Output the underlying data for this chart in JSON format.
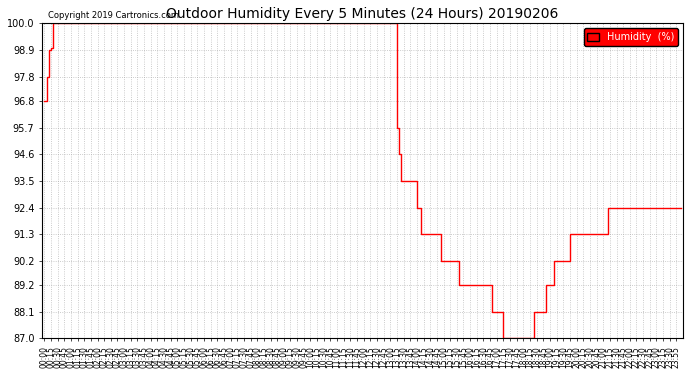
{
  "title": "Outdoor Humidity Every 5 Minutes (24 Hours) 20190206",
  "copyright": "Copyright 2019 Cartronics.com",
  "legend_label": "Humidity  (%)",
  "line_color": "#ff0000",
  "background_color": "#ffffff",
  "plot_bg_color": "#ffffff",
  "ylim": [
    87.0,
    100.0
  ],
  "yticks": [
    87.0,
    88.1,
    89.2,
    90.2,
    91.3,
    92.4,
    93.5,
    94.6,
    95.7,
    96.8,
    97.8,
    98.9,
    100.0
  ],
  "grid_color": "#aaaaaa",
  "humidity_values": [
    96.8,
    97.8,
    98.9,
    99.0,
    100.0,
    100.0,
    100.0,
    100.0,
    100.0,
    100.0,
    100.0,
    100.0,
    100.0,
    100.0,
    100.0,
    100.0,
    100.0,
    100.0,
    100.0,
    100.0,
    100.0,
    100.0,
    100.0,
    100.0,
    100.0,
    100.0,
    100.0,
    100.0,
    100.0,
    100.0,
    100.0,
    100.0,
    100.0,
    100.0,
    100.0,
    100.0,
    100.0,
    100.0,
    100.0,
    100.0,
    100.0,
    100.0,
    100.0,
    100.0,
    100.0,
    100.0,
    100.0,
    100.0,
    100.0,
    100.0,
    100.0,
    100.0,
    100.0,
    100.0,
    100.0,
    100.0,
    100.0,
    100.0,
    100.0,
    100.0,
    100.0,
    100.0,
    100.0,
    100.0,
    100.0,
    100.0,
    100.0,
    100.0,
    100.0,
    100.0,
    100.0,
    100.0,
    100.0,
    100.0,
    100.0,
    100.0,
    100.0,
    100.0,
    100.0,
    100.0,
    100.0,
    100.0,
    100.0,
    100.0,
    100.0,
    100.0,
    100.0,
    100.0,
    100.0,
    100.0,
    100.0,
    100.0,
    100.0,
    100.0,
    100.0,
    100.0,
    100.0,
    100.0,
    100.0,
    100.0,
    100.0,
    100.0,
    100.0,
    100.0,
    100.0,
    100.0,
    100.0,
    100.0,
    100.0,
    100.0,
    100.0,
    100.0,
    100.0,
    100.0,
    100.0,
    100.0,
    100.0,
    100.0,
    100.0,
    100.0,
    100.0,
    100.0,
    100.0,
    100.0,
    100.0,
    100.0,
    100.0,
    100.0,
    100.0,
    100.0,
    100.0,
    100.0,
    100.0,
    100.0,
    100.0,
    100.0,
    100.0,
    100.0,
    100.0,
    100.0,
    100.0,
    100.0,
    100.0,
    100.0,
    100.0,
    100.0,
    100.0,
    100.0,
    100.0,
    100.0,
    100.0,
    100.0,
    100.0,
    100.0,
    100.0,
    100.0,
    100.0,
    100.0,
    100.0,
    95.7,
    94.6,
    93.5,
    93.5,
    93.5,
    93.5,
    93.5,
    93.5,
    93.5,
    92.4,
    92.4,
    91.3,
    91.3,
    91.3,
    91.3,
    91.3,
    91.3,
    91.3,
    91.3,
    91.3,
    90.2,
    90.2,
    90.2,
    90.2,
    90.2,
    90.2,
    90.2,
    90.2,
    89.2,
    89.2,
    89.2,
    89.2,
    89.2,
    89.2,
    89.2,
    89.2,
    89.2,
    89.2,
    89.2,
    89.2,
    89.2,
    89.2,
    89.2,
    88.1,
    88.1,
    88.1,
    88.1,
    88.1,
    87.0,
    87.0,
    87.0,
    87.0,
    87.0,
    87.0,
    87.0,
    87.0,
    87.0,
    87.0,
    87.0,
    87.0,
    87.0,
    87.0,
    88.1,
    88.1,
    88.1,
    88.1,
    88.1,
    89.2,
    89.2,
    89.2,
    89.2,
    90.2,
    90.2,
    90.2,
    90.2,
    90.2,
    90.2,
    90.2,
    91.3,
    91.3,
    91.3,
    91.3,
    91.3,
    91.3,
    91.3,
    91.3,
    91.3,
    91.3,
    91.3,
    91.3,
    91.3,
    91.3,
    91.3,
    91.3,
    91.3,
    92.4,
    92.4,
    92.4,
    92.4,
    92.4,
    92.4,
    92.4,
    92.4,
    92.4,
    92.4,
    92.4,
    92.4,
    92.4,
    92.4,
    92.4,
    92.4,
    92.4,
    92.4,
    92.4,
    92.4,
    92.4,
    92.4,
    92.4,
    92.4,
    92.4,
    92.4,
    92.4,
    92.4,
    92.4,
    92.4,
    92.4,
    92.4,
    92.4,
    92.4
  ],
  "xtick_step": 3,
  "xtick_labels": [
    "00:00",
    "00:15",
    "00:30",
    "00:45",
    "01:00",
    "01:15",
    "01:30",
    "01:45",
    "02:00",
    "02:15",
    "02:30",
    "02:45",
    "03:00",
    "03:15",
    "03:30",
    "03:45",
    "04:00",
    "04:15",
    "04:30",
    "04:45",
    "05:00",
    "05:15",
    "05:30",
    "05:45",
    "06:00",
    "06:15",
    "06:30",
    "06:45",
    "07:00",
    "07:15",
    "07:30",
    "07:45",
    "08:00",
    "08:15",
    "08:30",
    "08:45",
    "09:00",
    "09:15",
    "09:30",
    "09:45",
    "10:00",
    "10:15",
    "10:30",
    "10:45",
    "11:00",
    "11:15",
    "11:30",
    "11:45",
    "12:00",
    "12:15",
    "12:30",
    "12:45",
    "13:00",
    "13:15",
    "13:30",
    "13:45",
    "14:00",
    "14:15",
    "14:30",
    "14:45",
    "15:00",
    "15:15",
    "15:30",
    "15:45",
    "16:00",
    "16:15",
    "16:30",
    "16:45",
    "17:00",
    "17:15",
    "17:30",
    "17:45",
    "18:00",
    "18:15",
    "18:30",
    "18:45",
    "19:00",
    "19:15",
    "19:30",
    "19:45",
    "20:00",
    "20:15",
    "20:30",
    "20:45",
    "21:00",
    "21:15",
    "21:30",
    "21:45",
    "22:00",
    "22:15",
    "22:30",
    "22:45",
    "23:00",
    "23:15",
    "23:30",
    "23:55"
  ]
}
